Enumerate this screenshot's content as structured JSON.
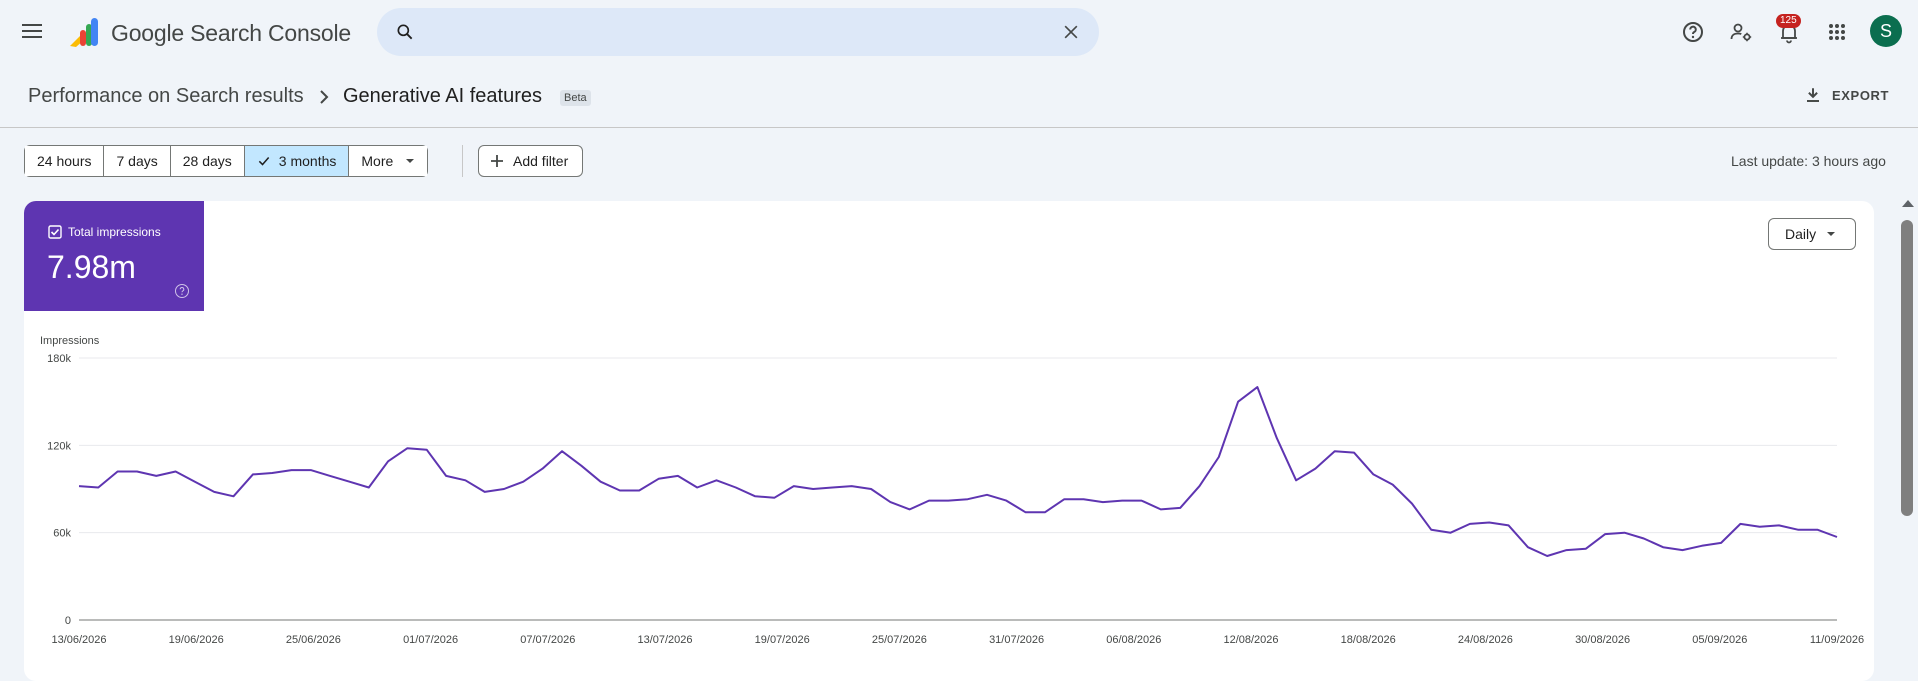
{
  "app": {
    "title": "Google Search Console"
  },
  "search": {
    "placeholder": "",
    "value": ""
  },
  "notifications": {
    "count": "125"
  },
  "user": {
    "avatar_letter": "S"
  },
  "breadcrumb": {
    "parent": "Performance on Search results",
    "current": "Generative AI features",
    "badge": "Beta"
  },
  "header": {
    "export_label": "EXPORT"
  },
  "date_range": {
    "options": [
      "24 hours",
      "7 days",
      "28 days",
      "3 months",
      "More"
    ],
    "selected": "3 months"
  },
  "filters": {
    "add_label": "Add filter"
  },
  "status": {
    "last_update": "Last update: 3 hours ago"
  },
  "metric": {
    "label": "Total impressions",
    "value": "7.98m",
    "checked": true,
    "color": "#5e35b1"
  },
  "granularity": {
    "selected": "Daily"
  },
  "chart_data": {
    "type": "line",
    "ylabel": "Impressions",
    "yticks": [
      "0",
      "60k",
      "120k",
      "180k"
    ],
    "ylim": [
      0,
      180000
    ],
    "x_tick_labels": [
      "13/06/2026",
      "19/06/2026",
      "25/06/2026",
      "01/07/2026",
      "07/07/2026",
      "13/07/2026",
      "19/07/2026",
      "25/07/2026",
      "31/07/2026",
      "06/08/2026",
      "12/08/2026",
      "18/08/2026",
      "24/08/2026",
      "30/08/2026",
      "05/09/2026",
      "11/09/2026"
    ],
    "grid": true,
    "series": [
      {
        "color": "#5e35b1",
        "values": [
          92000,
          91000,
          102000,
          102000,
          99000,
          102000,
          95000,
          88000,
          85000,
          100000,
          101000,
          103000,
          103000,
          99000,
          95000,
          91000,
          109000,
          118000,
          117000,
          99000,
          96000,
          88000,
          90000,
          95000,
          104000,
          116000,
          106000,
          95000,
          89000,
          89000,
          97000,
          99000,
          91000,
          96000,
          91000,
          85000,
          84000,
          92000,
          90000,
          91000,
          92000,
          90000,
          81000,
          76000,
          82000,
          82000,
          83000,
          86000,
          82000,
          74000,
          74000,
          83000,
          83000,
          81000,
          82000,
          82000,
          76000,
          77000,
          92000,
          112000,
          150000,
          160000,
          125000,
          96000,
          104000,
          116000,
          115000,
          100000,
          93000,
          80000,
          62000,
          60000,
          66000,
          67000,
          65000,
          50000,
          44000,
          48000,
          49000,
          59000,
          60000,
          56000,
          50000,
          48000,
          51000,
          53000,
          66000,
          64000,
          65000,
          62000,
          62000,
          57000
        ]
      }
    ]
  }
}
